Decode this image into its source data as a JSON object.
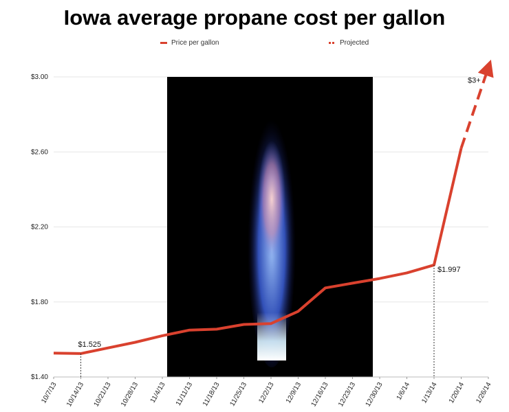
{
  "colors": {
    "series": "#d9412e",
    "background_panel": "#000000",
    "grid": "#e6e6e6"
  },
  "chart_data": {
    "type": "line",
    "title": "Iowa average propane cost per gallon",
    "legend": {
      "placement": "top",
      "entries": [
        "Price per gallon",
        "Projected"
      ]
    },
    "x": [
      "10/7/13",
      "10/14/13",
      "10/21/13",
      "10/28/13",
      "11/4/13",
      "11/11/13",
      "11/18/13",
      "11/25/13",
      "12/2/13",
      "12/9/13",
      "12/16/13",
      "12/23/13",
      "12/30/13",
      "1/6/14",
      "1/13/14",
      "1/20/14",
      "1/26/14"
    ],
    "series": [
      {
        "name": "Price per gallon",
        "style": "solid",
        "points": [
          [
            "10/7/13",
            1.527
          ],
          [
            "10/14/13",
            1.525
          ],
          [
            "10/21/13",
            1.555
          ],
          [
            "10/28/13",
            1.585
          ],
          [
            "11/4/13",
            1.62
          ],
          [
            "11/11/13",
            1.65
          ],
          [
            "11/18/13",
            1.655
          ],
          [
            "11/25/13",
            1.68
          ],
          [
            "12/2/13",
            1.685
          ],
          [
            "12/9/13",
            1.75
          ],
          [
            "12/16/13",
            1.875
          ],
          [
            "12/23/13",
            1.9
          ],
          [
            "12/30/13",
            1.925
          ],
          [
            "1/6/14",
            1.955
          ],
          [
            "1/13/14",
            1.997
          ],
          [
            "1/20/14",
            2.62
          ]
        ]
      },
      {
        "name": "Projected",
        "style": "dashed",
        "points": [
          [
            "1/20/14",
            2.62
          ],
          [
            "1/26/14",
            3.05
          ]
        ]
      }
    ],
    "annotations": [
      {
        "x": "10/14/13",
        "y": 1.525,
        "label": "$1.525"
      },
      {
        "x": "1/13/14",
        "y": 1.997,
        "label": "$1.997"
      },
      {
        "x": "1/26/14",
        "y": 3.05,
        "label": "$3+"
      }
    ],
    "ylim": [
      1.4,
      3.0
    ],
    "yticks": [
      "$1.40",
      "$1.80",
      "$2.20",
      "$2.60",
      "$3.00"
    ],
    "grid": true,
    "xlabel": "",
    "ylabel": ""
  }
}
